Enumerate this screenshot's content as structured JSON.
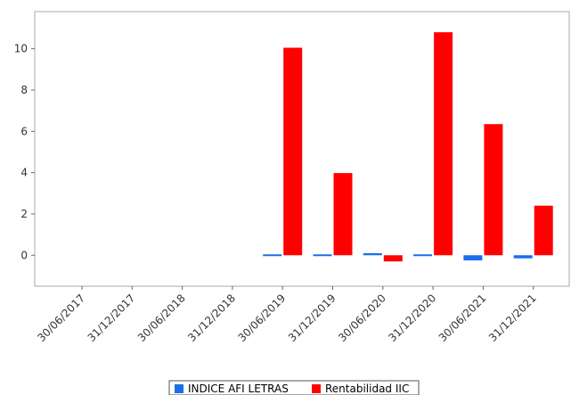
{
  "chart_data": {
    "type": "bar",
    "categories": [
      "30/06/2017",
      "31/12/2017",
      "30/06/2018",
      "31/12/2018",
      "30/06/2019",
      "31/12/2019",
      "30/06/2020",
      "31/12/2020",
      "30/06/2021",
      "31/12/2021"
    ],
    "series": [
      {
        "name": "INDICE AFI LETRAS",
        "color": "#1a6fe8",
        "values": [
          null,
          null,
          null,
          null,
          -0.02,
          -0.04,
          0.1,
          -0.02,
          -0.25,
          -0.15
        ]
      },
      {
        "name": "Rentabilidad IIC",
        "color": "#ff0000",
        "values": [
          null,
          null,
          null,
          null,
          10.05,
          3.98,
          -0.3,
          10.8,
          6.35,
          2.4
        ]
      }
    ],
    "yticks": [
      0,
      2,
      4,
      6,
      8,
      10
    ],
    "ylim": [
      -1.5,
      11.8
    ],
    "xlabel": "",
    "ylabel": "",
    "grid": false,
    "legend_position": "bottom"
  }
}
